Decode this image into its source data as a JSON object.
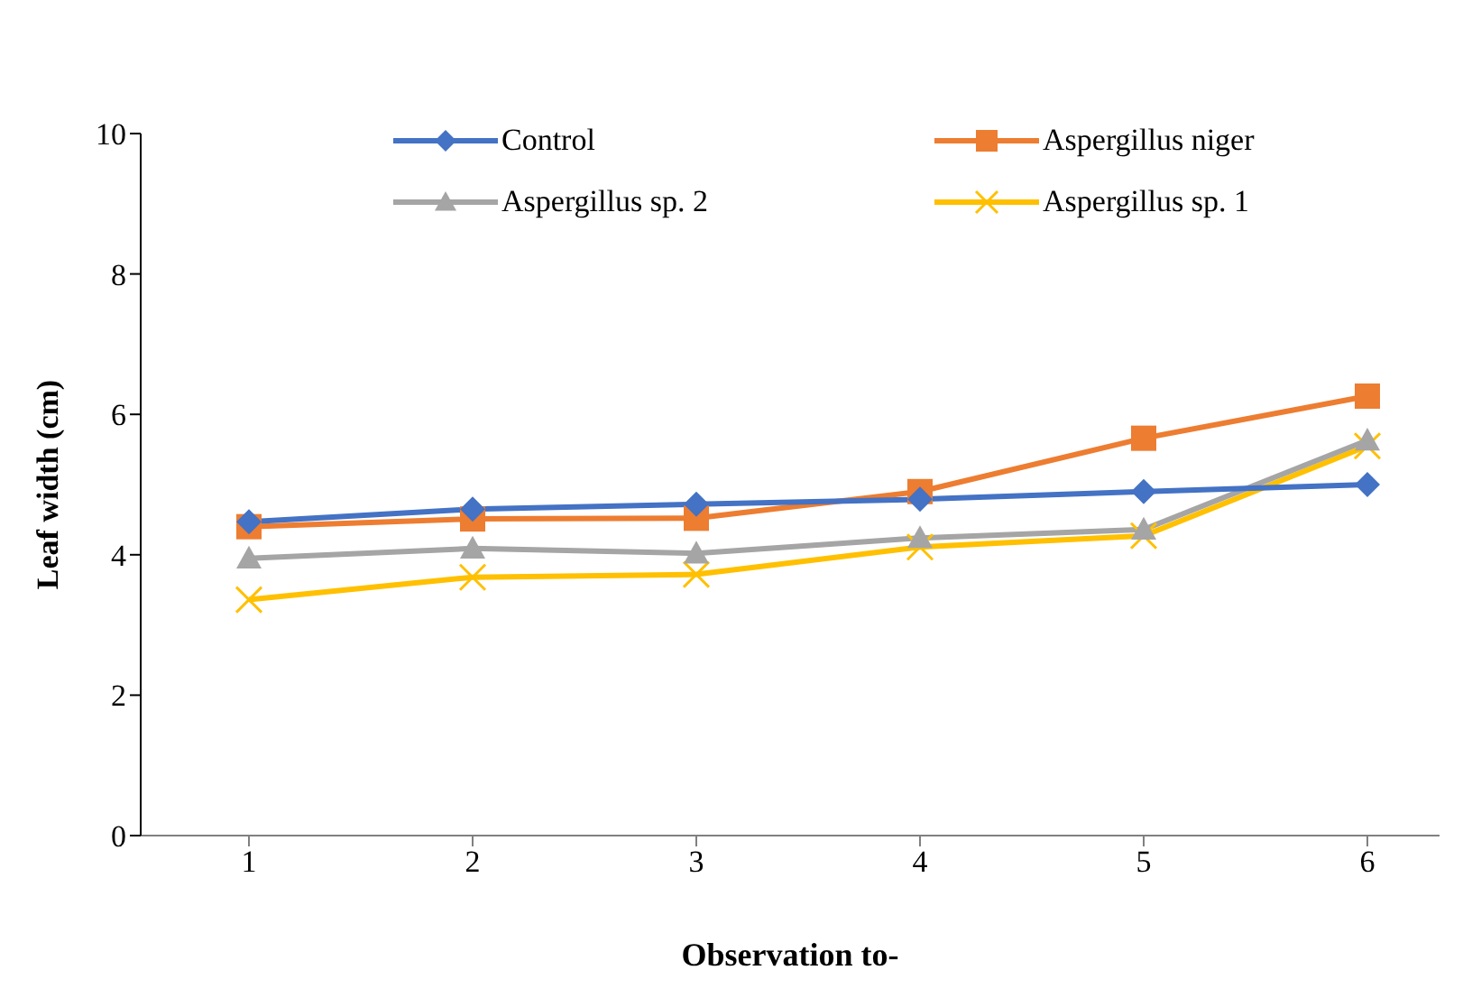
{
  "chart_data": {
    "type": "line",
    "xlabel": "Observation to-",
    "ylabel": "Leaf width (cm)",
    "categories": [
      "1",
      "2",
      "3",
      "4",
      "5",
      "6"
    ],
    "ylim": [
      0,
      10
    ],
    "yticks": [
      0,
      2,
      4,
      6,
      8,
      10
    ],
    "grid": false,
    "legend": "top",
    "series": [
      {
        "name": "Control",
        "color": "#4472c4",
        "marker": "diamond",
        "values": [
          4.47,
          4.65,
          4.72,
          4.79,
          4.9,
          5.0
        ]
      },
      {
        "name": "Aspergillus niger",
        "color": "#ed7d31",
        "marker": "square",
        "values": [
          4.4,
          4.51,
          4.52,
          4.9,
          5.66,
          6.26
        ]
      },
      {
        "name": "Aspergillus sp. 2",
        "color": "#a5a5a5",
        "marker": "triangle",
        "values": [
          3.95,
          4.09,
          4.02,
          4.24,
          4.36,
          5.63
        ]
      },
      {
        "name": "Aspergillus sp. 1",
        "color": "#ffc000",
        "marker": "cross",
        "values": [
          3.36,
          3.68,
          3.72,
          4.11,
          4.27,
          5.55
        ]
      }
    ]
  }
}
